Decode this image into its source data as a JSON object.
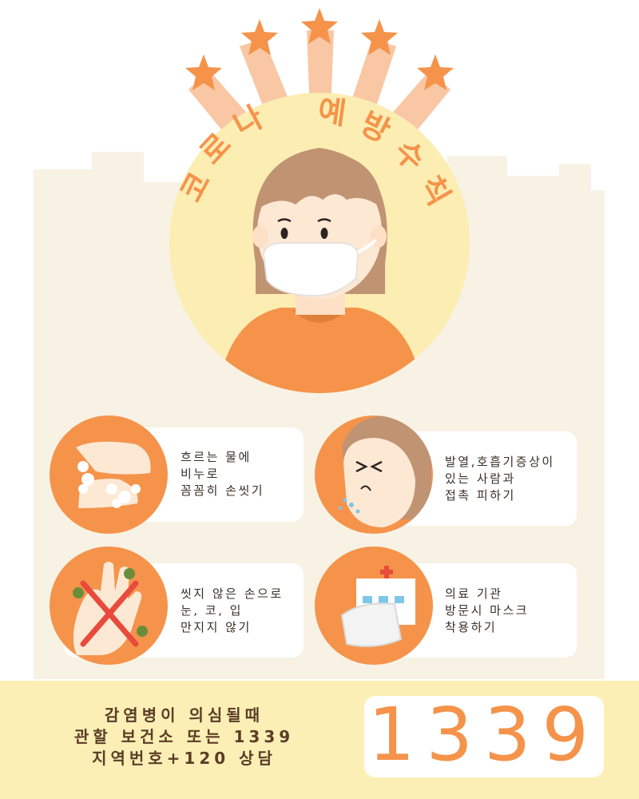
{
  "title": "코로나 예방수칙",
  "title_chars": [
    "코",
    "로",
    "나",
    "예",
    "방",
    "수",
    "칙"
  ],
  "tips": [
    {
      "lines": [
        "흐르는 물에",
        "비누로",
        "꼼꼼히 손씻기"
      ],
      "icon": "hand-washing-icon"
    },
    {
      "lines": [
        "발열,호흡기증상이",
        "있는 사람과",
        "접촉 피하기"
      ],
      "icon": "sneezing-person-icon"
    },
    {
      "lines": [
        "씻지 않은 손으로",
        "눈, 코, 입",
        "만지지 않기"
      ],
      "icon": "no-touch-face-icon"
    },
    {
      "lines": [
        "의료 기관",
        "방문시 마스크",
        "착용하기"
      ],
      "icon": "hospital-mask-icon"
    }
  ],
  "contact": {
    "lines": [
      "감염병이 의심될때",
      "관할 보건소 또는 1339",
      "지역번호+120 상담"
    ],
    "number": "1339"
  },
  "colors": {
    "orange": "#f5934b",
    "light_yellow": "#fcefb6",
    "cream": "#f7f2e4",
    "text": "#3a2f2a"
  }
}
